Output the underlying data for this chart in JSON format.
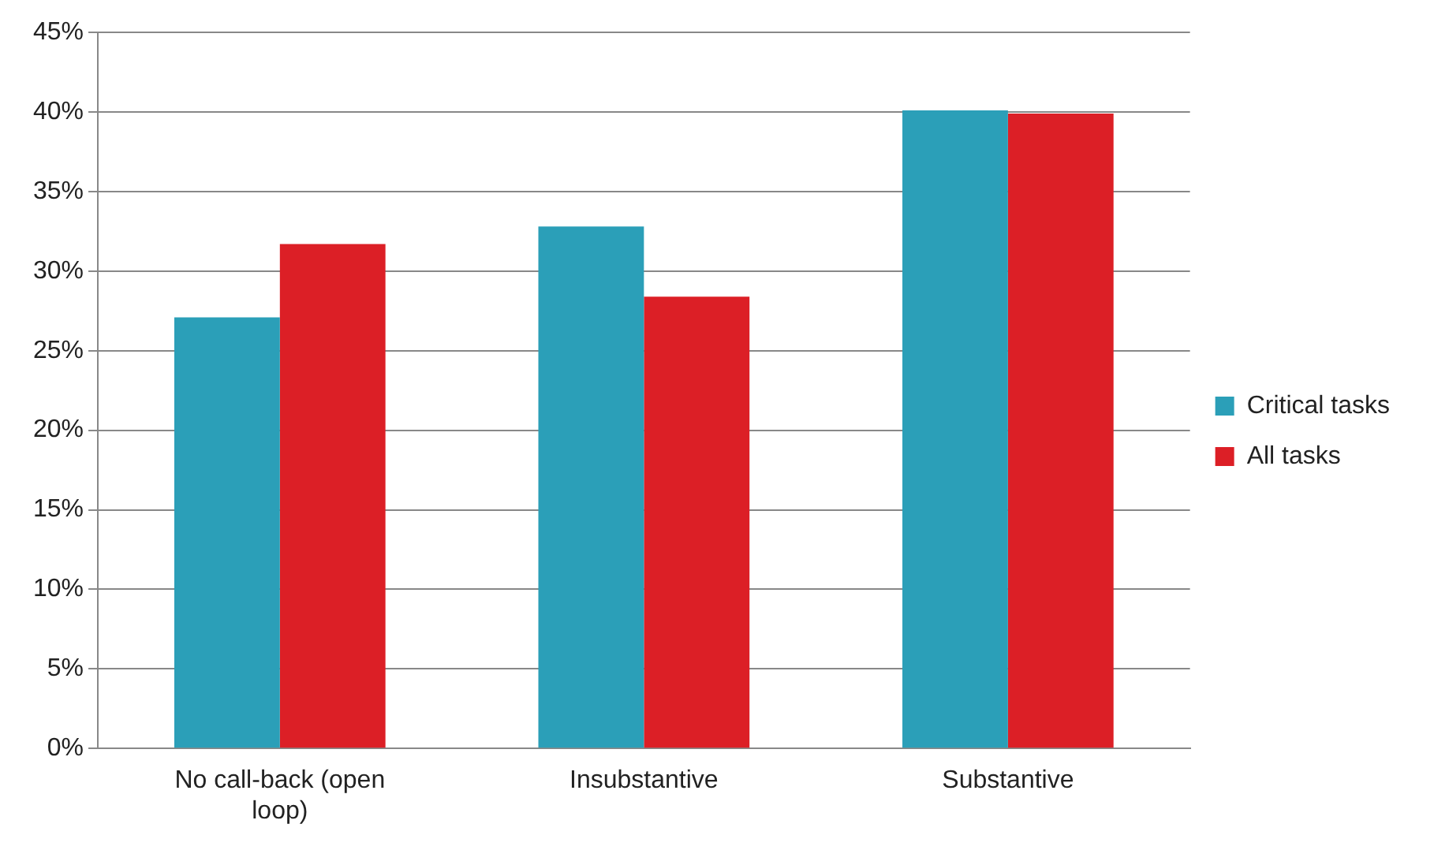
{
  "chart_data": {
    "type": "bar",
    "categories": [
      "No call-back (open loop)",
      "Insubstantive",
      "Substantive"
    ],
    "series": [
      {
        "name": "Critical tasks",
        "color": "#2b9fb8",
        "values": [
          27.1,
          32.8,
          40.1
        ]
      },
      {
        "name": "All tasks",
        "color": "#dc1f26",
        "values": [
          31.7,
          28.4,
          39.9
        ]
      }
    ],
    "ylim": [
      0,
      45
    ],
    "yticks": [
      {
        "value": 0,
        "label": "0%"
      },
      {
        "value": 5,
        "label": "5%"
      },
      {
        "value": 10,
        "label": "10%"
      },
      {
        "value": 15,
        "label": "15%"
      },
      {
        "value": 20,
        "label": "20%"
      },
      {
        "value": 25,
        "label": "25%"
      },
      {
        "value": 30,
        "label": "30%"
      },
      {
        "value": 35,
        "label": "35%"
      },
      {
        "value": 40,
        "label": "40%"
      },
      {
        "value": 45,
        "label": "45%"
      }
    ],
    "grid": "y",
    "legend": "right"
  }
}
